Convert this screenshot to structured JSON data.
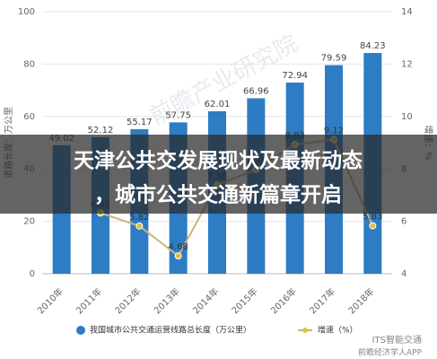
{
  "chart_data": {
    "type": "bar",
    "categories": [
      "2010年",
      "2011年",
      "2012年",
      "2013年",
      "2014年",
      "2015年",
      "2016年",
      "2017年",
      "2018年"
    ],
    "series": [
      {
        "name": "我国城市公共交通运营线路总长度（万公里）",
        "color": "#2e7cc4",
        "values": [
          49.02,
          52.12,
          55.17,
          57.75,
          62.01,
          66.96,
          72.94,
          79.59,
          84.23
        ]
      },
      {
        "name": "增速（%）",
        "type": "line",
        "axis": "y2",
        "color": "#cdb27a",
        "values": [
          null,
          6.32,
          5.82,
          4.68,
          7.38,
          7.98,
          8.93,
          9.12,
          5.83
        ]
      }
    ],
    "ylabel": "道路长度：万公里",
    "y2label": "增速：%",
    "ylim": [
      0,
      100
    ],
    "yticks": [
      0,
      20,
      40,
      60,
      80,
      100
    ],
    "y2lim": [
      4,
      14
    ],
    "y2ticks": [
      4,
      6,
      8,
      10,
      12,
      14
    ],
    "grid": true,
    "legend": "bottom"
  },
  "overlay": {
    "title": [
      "天津公共交发展现状及最新动态",
      "，城市公共交通新篇章开启"
    ]
  },
  "watermark": "前瞻产业研究院",
  "footer": {
    "left": "前瞻经济学人APP",
    "right": "ITS智能交通"
  }
}
